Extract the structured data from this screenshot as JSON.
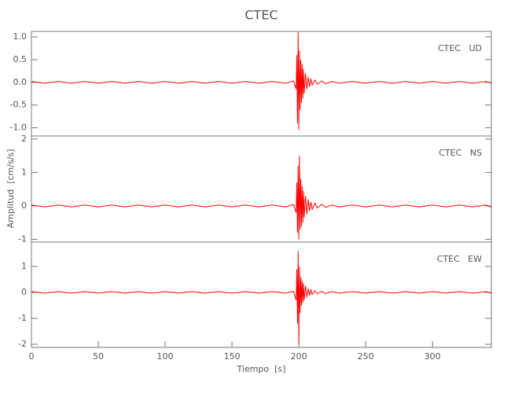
{
  "chart_data": [
    {
      "type": "line",
      "title": "CTEC",
      "annotation": "CTEC   UD",
      "x": [
        0,
        10,
        20,
        30,
        40,
        50,
        60,
        70,
        80,
        90,
        100,
        110,
        120,
        130,
        140,
        150,
        160,
        170,
        180,
        190,
        196,
        198,
        198.5,
        199,
        199.5,
        200,
        200.5,
        201,
        201.5,
        202,
        202.5,
        203,
        203.5,
        204,
        205,
        206,
        207,
        208,
        209,
        210,
        212,
        214,
        217,
        220,
        225,
        230,
        240,
        250,
        260,
        270,
        280,
        290,
        300,
        310,
        320,
        330,
        340,
        344
      ],
      "xlim": [
        0,
        344
      ],
      "series": [
        {
          "color": "#ff0000",
          "values": [
            0.02,
            -0.02,
            0.02,
            -0.02,
            0.02,
            -0.02,
            0.02,
            -0.02,
            0.02,
            -0.02,
            0.02,
            -0.02,
            0.02,
            -0.02,
            0.02,
            -0.02,
            0.02,
            -0.02,
            0.02,
            -0.02,
            0.03,
            -0.15,
            0.6,
            -0.9,
            1.1,
            -1.05,
            0.7,
            -0.6,
            0.5,
            -0.45,
            0.4,
            -0.35,
            0.3,
            -0.25,
            0.2,
            -0.15,
            0.12,
            -0.1,
            0.08,
            -0.06,
            0.05,
            -0.04,
            0.03,
            -0.03,
            0.02,
            -0.02,
            0.02,
            -0.02,
            0.02,
            -0.02,
            0.02,
            -0.02,
            0.02,
            -0.02,
            0.02,
            -0.02,
            0.02,
            -0.02
          ]
        }
      ],
      "ylim": [
        -1.18,
        1.12
      ],
      "yticks": [
        {
          "value": -1,
          "label": "-1.0"
        },
        -0.5,
        {
          "value": 0,
          "label": "0.0"
        },
        0.5,
        {
          "value": 1,
          "label": "1.0"
        }
      ]
    },
    {
      "type": "line",
      "ylabel": "Amplitud  [cm/s/s]",
      "annotation": "CTEC   NS",
      "x": [
        0,
        10,
        20,
        30,
        40,
        50,
        60,
        70,
        80,
        90,
        100,
        110,
        120,
        130,
        140,
        150,
        160,
        170,
        180,
        190,
        196,
        198,
        198.5,
        199,
        199.5,
        200,
        200.5,
        201,
        201.5,
        202,
        202.5,
        203,
        203.5,
        204,
        205,
        206,
        207,
        208,
        209,
        210,
        212,
        214,
        217,
        220,
        225,
        230,
        240,
        250,
        260,
        270,
        280,
        290,
        300,
        310,
        320,
        330,
        340,
        344
      ],
      "xlim": [
        0,
        344
      ],
      "series": [
        {
          "color": "#ff0000",
          "values": [
            0.03,
            -0.03,
            0.03,
            -0.03,
            0.03,
            -0.03,
            0.03,
            -0.03,
            0.03,
            -0.03,
            0.03,
            -0.03,
            0.03,
            -0.03,
            0.03,
            -0.03,
            0.03,
            -0.03,
            0.03,
            -0.03,
            0.04,
            -0.2,
            0.7,
            -0.8,
            1.2,
            -1.0,
            1.5,
            -0.7,
            0.8,
            -0.6,
            0.6,
            -0.5,
            0.45,
            -0.35,
            0.3,
            -0.25,
            0.2,
            -0.15,
            0.12,
            -0.1,
            0.08,
            -0.06,
            0.05,
            -0.04,
            0.03,
            -0.03,
            0.03,
            -0.03,
            0.03,
            -0.03,
            0.03,
            -0.03,
            0.03,
            -0.03,
            0.03,
            -0.03,
            0.03,
            -0.03
          ]
        }
      ],
      "ylim": [
        -1.08,
        2.09
      ],
      "yticks": [
        -1,
        0,
        1,
        2
      ]
    },
    {
      "type": "line",
      "xlabel": "Tiempo  [s]",
      "annotation": "CTEC   EW",
      "x": [
        0,
        10,
        20,
        30,
        40,
        50,
        60,
        70,
        80,
        90,
        100,
        110,
        120,
        130,
        140,
        150,
        160,
        170,
        180,
        190,
        196,
        198,
        198.5,
        199,
        199.5,
        200,
        200.5,
        201,
        201.5,
        202,
        202.5,
        203,
        203.5,
        204,
        205,
        206,
        207,
        208,
        209,
        210,
        212,
        214,
        217,
        220,
        225,
        230,
        240,
        250,
        260,
        270,
        280,
        290,
        300,
        310,
        320,
        330,
        340,
        344
      ],
      "xlim": [
        0,
        344
      ],
      "xticks": [
        0,
        50,
        100,
        150,
        200,
        250,
        300
      ],
      "series": [
        {
          "color": "#ff0000",
          "values": [
            0.03,
            -0.03,
            0.03,
            -0.03,
            0.03,
            -0.03,
            0.03,
            -0.03,
            0.03,
            -0.03,
            0.03,
            -0.03,
            0.03,
            -0.03,
            0.03,
            -0.03,
            0.03,
            -0.03,
            0.03,
            -0.03,
            0.04,
            -0.3,
            0.9,
            -1.2,
            1.6,
            -2.0,
            1.0,
            -0.8,
            0.6,
            -0.5,
            0.45,
            -0.4,
            0.35,
            -0.3,
            0.25,
            -0.2,
            0.15,
            -0.12,
            0.1,
            -0.08,
            0.06,
            -0.05,
            0.04,
            -0.04,
            0.03,
            -0.03,
            0.03,
            -0.03,
            0.03,
            -0.03,
            0.03,
            -0.03,
            0.03,
            -0.03,
            0.03,
            -0.03,
            0.03,
            -0.03
          ]
        }
      ],
      "ylim": [
        -2.12,
        1.94
      ],
      "yticks": [
        -2,
        -1,
        0,
        1
      ]
    }
  ]
}
